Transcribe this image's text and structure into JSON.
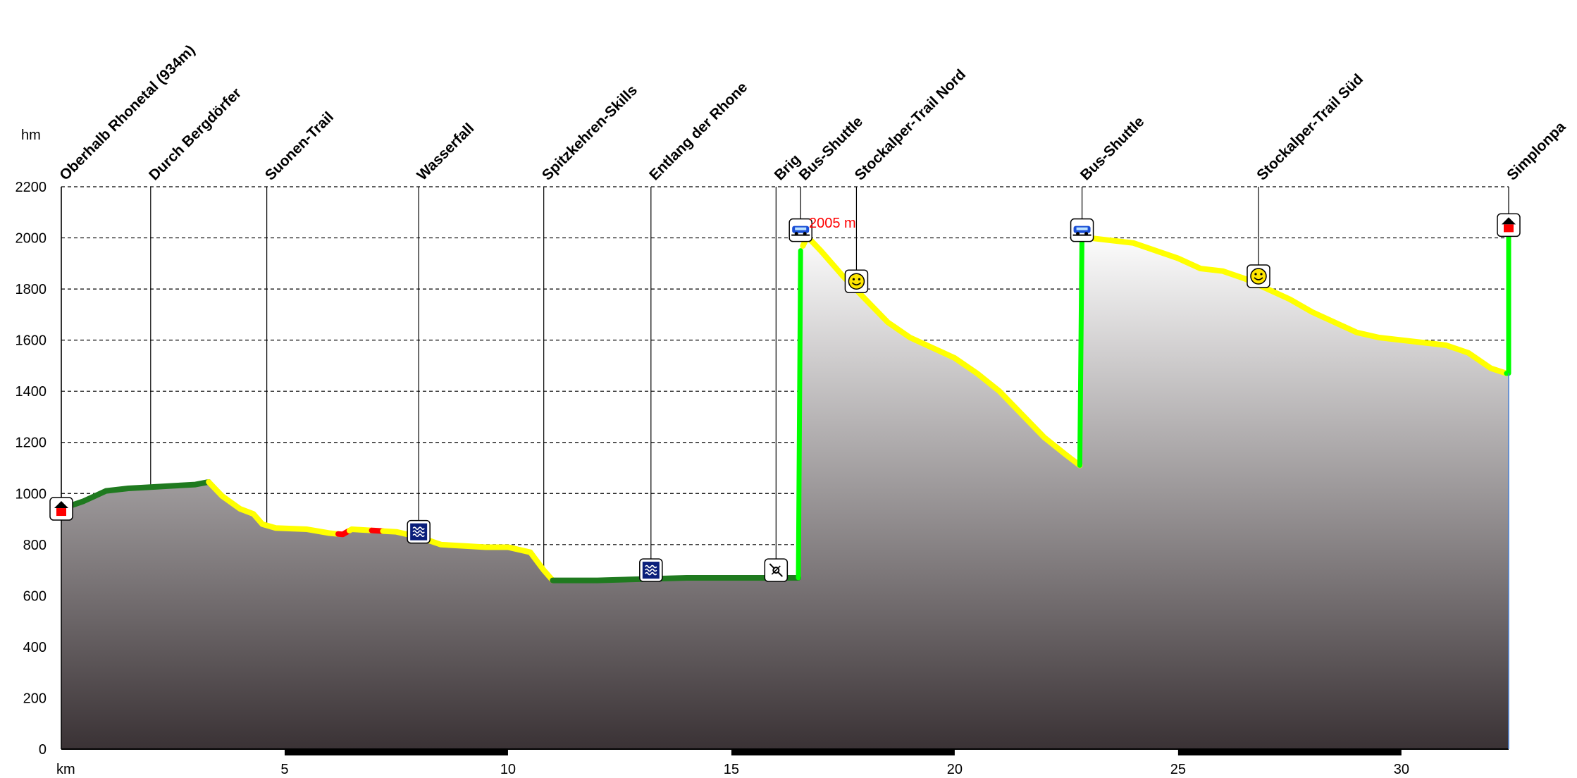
{
  "chart_data": {
    "type": "area",
    "title": "",
    "xlabel": "km",
    "ylabel": "hm",
    "xlim": [
      0,
      32.4
    ],
    "ylim": [
      0,
      2200
    ],
    "yticks": [
      0,
      200,
      400,
      600,
      800,
      1000,
      1200,
      1400,
      1600,
      1800,
      2000,
      2200
    ],
    "xticks": [
      5,
      10,
      15,
      20,
      25,
      30
    ],
    "grid": true,
    "max_label": "2005 m",
    "colors": {
      "flat": "#1f7a1f",
      "moderate": "#ffff00",
      "steep": "#ff0000",
      "shuttle": "#00ff00",
      "fill_top": "#ffffff",
      "fill_bottom": "#3a3235"
    },
    "profile": [
      [
        0.0,
        940
      ],
      [
        0.5,
        970
      ],
      [
        1.0,
        1010
      ],
      [
        1.5,
        1020
      ],
      [
        2.0,
        1025
      ],
      [
        2.5,
        1030
      ],
      [
        3.0,
        1035
      ],
      [
        3.3,
        1045
      ],
      [
        3.6,
        990
      ],
      [
        4.0,
        940
      ],
      [
        4.3,
        920
      ],
      [
        4.5,
        880
      ],
      [
        4.8,
        865
      ],
      [
        5.5,
        860
      ],
      [
        6.0,
        845
      ],
      [
        6.3,
        840
      ],
      [
        6.5,
        860
      ],
      [
        7.0,
        855
      ],
      [
        7.5,
        850
      ],
      [
        8.0,
        830
      ],
      [
        8.5,
        800
      ],
      [
        9.0,
        795
      ],
      [
        9.5,
        790
      ],
      [
        10.0,
        790
      ],
      [
        10.5,
        770
      ],
      [
        10.8,
        700
      ],
      [
        11.0,
        660
      ],
      [
        12.0,
        660
      ],
      [
        13.0,
        665
      ],
      [
        14.0,
        670
      ],
      [
        15.0,
        670
      ],
      [
        16.0,
        670
      ],
      [
        16.5,
        670
      ],
      [
        16.55,
        1950
      ],
      [
        16.7,
        2005
      ],
      [
        17.0,
        1950
      ],
      [
        17.5,
        1850
      ],
      [
        18.0,
        1760
      ],
      [
        18.5,
        1670
      ],
      [
        19.0,
        1610
      ],
      [
        19.5,
        1570
      ],
      [
        20.0,
        1530
      ],
      [
        20.5,
        1470
      ],
      [
        21.0,
        1400
      ],
      [
        21.5,
        1310
      ],
      [
        22.0,
        1220
      ],
      [
        22.5,
        1150
      ],
      [
        22.8,
        1110
      ],
      [
        22.85,
        2030
      ],
      [
        23.0,
        2000
      ],
      [
        23.5,
        1990
      ],
      [
        24.0,
        1980
      ],
      [
        24.5,
        1950
      ],
      [
        25.0,
        1920
      ],
      [
        25.5,
        1880
      ],
      [
        26.0,
        1870
      ],
      [
        26.5,
        1840
      ],
      [
        27.0,
        1800
      ],
      [
        27.5,
        1760
      ],
      [
        28.0,
        1710
      ],
      [
        28.5,
        1670
      ],
      [
        29.0,
        1630
      ],
      [
        29.5,
        1610
      ],
      [
        30.0,
        1600
      ],
      [
        30.5,
        1590
      ],
      [
        31.0,
        1580
      ],
      [
        31.5,
        1550
      ],
      [
        32.0,
        1490
      ],
      [
        32.35,
        1470
      ],
      [
        32.4,
        1470
      ],
      [
        32.4,
        2020
      ]
    ],
    "segments": [
      {
        "class": "flat",
        "x": [
          0.0,
          3.3
        ]
      },
      {
        "class": "moderate",
        "x": [
          3.3,
          6.2
        ]
      },
      {
        "class": "steep",
        "x": [
          6.2,
          6.45
        ]
      },
      {
        "class": "moderate",
        "x": [
          6.45,
          6.95
        ]
      },
      {
        "class": "steep",
        "x": [
          6.95,
          7.2
        ]
      },
      {
        "class": "moderate",
        "x": [
          7.2,
          11.0
        ]
      },
      {
        "class": "flat",
        "x": [
          11.0,
          16.5
        ]
      },
      {
        "class": "shuttle",
        "x": [
          16.5,
          16.6
        ]
      },
      {
        "class": "moderate",
        "x": [
          16.6,
          22.8
        ]
      },
      {
        "class": "shuttle",
        "x": [
          22.8,
          22.9
        ]
      },
      {
        "class": "moderate",
        "x": [
          22.9,
          32.35
        ]
      },
      {
        "class": "shuttle",
        "x": [
          32.35,
          32.4
        ]
      }
    ],
    "waypoints": [
      {
        "name": "Oberhalb Rhonetal (934m)",
        "x": 0.0,
        "y": 940,
        "icon": "house-icon"
      },
      {
        "name": "Durch Bergdörfer",
        "x": 2.0,
        "y": 1025,
        "icon": ""
      },
      {
        "name": "Suonen-Trail",
        "x": 4.6,
        "y": 870,
        "icon": ""
      },
      {
        "name": "Wasserfall",
        "x": 8.0,
        "y": 850,
        "icon": "water-icon"
      },
      {
        "name": "Spitzkehren-Skills",
        "x": 10.8,
        "y": 700,
        "icon": ""
      },
      {
        "name": "Entlang der Rhone",
        "x": 13.2,
        "y": 700,
        "icon": "water-icon"
      },
      {
        "name": "Brig",
        "x": 16.0,
        "y": 700,
        "icon": "town-icon"
      },
      {
        "name": "Bus-Shuttle",
        "x": 16.55,
        "y": 2030,
        "icon": "bus-icon"
      },
      {
        "name": "Stockalper-Trail Nord",
        "x": 17.8,
        "y": 1830,
        "icon": "smiley-icon"
      },
      {
        "name": "Bus-Shuttle",
        "x": 22.85,
        "y": 2030,
        "icon": "bus-icon"
      },
      {
        "name": "Stockalper-Trail Süd",
        "x": 26.8,
        "y": 1850,
        "icon": "smiley-icon"
      },
      {
        "name": "Simplonpa",
        "x": 32.4,
        "y": 2050,
        "icon": "house-icon"
      }
    ]
  }
}
